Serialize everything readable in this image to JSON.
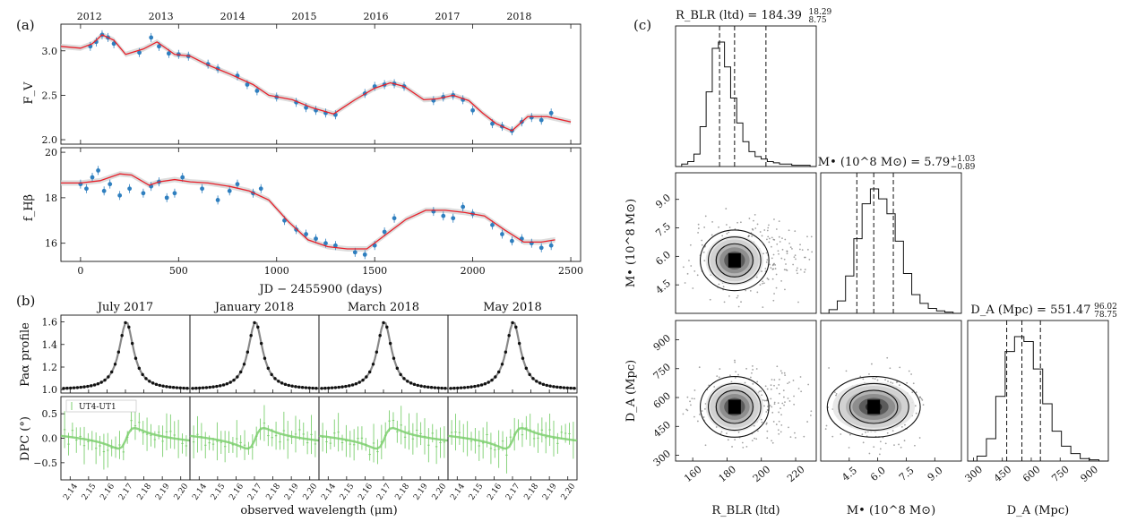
{
  "panel_letters": {
    "a": "(a)",
    "b": "(b)",
    "c": "(c)"
  },
  "chart_data": [
    {
      "type": "scatter",
      "id": "a-top",
      "ylabel": "F_V",
      "xlim": [
        -100,
        2550
      ],
      "ylim": [
        1.95,
        3.3
      ],
      "xticks": [
        "0",
        "500",
        "1000",
        "1500",
        "2000",
        "2500"
      ],
      "yticks": [
        "2.0",
        "2.5",
        "3.0"
      ],
      "top_axis_years": [
        "2012",
        "2013",
        "2014",
        "2015",
        "2016",
        "2017",
        "2018"
      ],
      "series": [
        {
          "kind": "points",
          "color": "#2f7fbf",
          "x": [
            50,
            80,
            110,
            140,
            170,
            300,
            360,
            400,
            450,
            500,
            550,
            650,
            700,
            800,
            850,
            900,
            1000,
            1100,
            1150,
            1200,
            1250,
            1300,
            1450,
            1500,
            1550,
            1600,
            1650,
            1800,
            1850,
            1900,
            1950,
            2000,
            2100,
            2150,
            2200,
            2250,
            2300,
            2350,
            2400
          ],
          "y": [
            3.05,
            3.1,
            3.18,
            3.15,
            3.08,
            2.98,
            3.15,
            3.05,
            2.97,
            2.96,
            2.94,
            2.85,
            2.8,
            2.72,
            2.62,
            2.55,
            2.48,
            2.42,
            2.36,
            2.33,
            2.3,
            2.28,
            2.52,
            2.6,
            2.62,
            2.63,
            2.6,
            2.44,
            2.48,
            2.5,
            2.45,
            2.33,
            2.18,
            2.15,
            2.1,
            2.2,
            2.25,
            2.22,
            2.3
          ]
        },
        {
          "kind": "line",
          "color": "#e8202a",
          "x": [
            -100,
            0,
            60,
            110,
            170,
            230,
            320,
            390,
            480,
            560,
            650,
            760,
            880,
            960,
            1080,
            1180,
            1290,
            1400,
            1500,
            1580,
            1650,
            1750,
            1820,
            1900,
            1980,
            2050,
            2120,
            2200,
            2280,
            2380,
            2500
          ],
          "y": [
            3.05,
            3.03,
            3.08,
            3.18,
            3.12,
            2.96,
            3.02,
            3.1,
            2.96,
            2.94,
            2.84,
            2.74,
            2.62,
            2.5,
            2.45,
            2.36,
            2.29,
            2.45,
            2.58,
            2.64,
            2.6,
            2.45,
            2.46,
            2.5,
            2.44,
            2.3,
            2.18,
            2.1,
            2.26,
            2.26,
            2.2
          ]
        }
      ]
    },
    {
      "type": "scatter",
      "id": "a-bottom",
      "xlabel": "JD − 2455900 (days)",
      "ylabel": "f_Hβ",
      "xlim": [
        -100,
        2550
      ],
      "ylim": [
        15.2,
        20.2
      ],
      "xticks": [
        "0",
        "500",
        "1000",
        "1500",
        "2000",
        "2500"
      ],
      "yticks": [
        "16",
        "18",
        "20"
      ],
      "series": [
        {
          "kind": "points",
          "color": "#2f7fbf",
          "x": [
            0,
            30,
            60,
            90,
            120,
            150,
            200,
            250,
            320,
            360,
            400,
            440,
            480,
            520,
            620,
            700,
            760,
            800,
            880,
            920,
            1040,
            1100,
            1150,
            1200,
            1250,
            1300,
            1400,
            1450,
            1500,
            1550,
            1600,
            1800,
            1850,
            1900,
            1950,
            2000,
            2100,
            2150,
            2200,
            2250,
            2300,
            2350,
            2400
          ],
          "y": [
            18.6,
            18.4,
            18.9,
            19.2,
            18.3,
            18.6,
            18.1,
            18.4,
            18.2,
            18.5,
            18.7,
            18.0,
            18.2,
            18.9,
            18.4,
            17.9,
            18.3,
            18.6,
            18.2,
            18.4,
            17.0,
            16.6,
            16.4,
            16.2,
            16.0,
            15.9,
            15.6,
            15.5,
            15.9,
            16.5,
            17.1,
            17.4,
            17.2,
            17.1,
            17.6,
            17.3,
            16.8,
            16.4,
            16.1,
            16.2,
            16.0,
            15.8,
            15.9
          ]
        },
        {
          "kind": "line",
          "color": "#e8202a",
          "x": [
            -100,
            0,
            100,
            200,
            260,
            350,
            400,
            480,
            560,
            650,
            760,
            860,
            960,
            1060,
            1160,
            1260,
            1360,
            1460,
            1560,
            1660,
            1760,
            1860,
            1960,
            2060,
            2160,
            2260,
            2350,
            2420
          ],
          "y": [
            18.65,
            18.65,
            18.75,
            19.05,
            19.0,
            18.55,
            18.7,
            18.8,
            18.7,
            18.65,
            18.5,
            18.3,
            17.9,
            16.95,
            16.15,
            15.85,
            15.75,
            15.75,
            16.4,
            17.05,
            17.45,
            17.45,
            17.35,
            17.2,
            16.6,
            16.05,
            16.05,
            16.15
          ]
        }
      ]
    },
    {
      "type": "line",
      "id": "b-profile",
      "ylabel": "Paα profile",
      "titles": [
        "July 2017",
        "January 2018",
        "March 2018",
        "May 2018"
      ],
      "xlim": [
        2.135,
        2.205
      ],
      "ylim": [
        0.97,
        1.66
      ],
      "xticks": [
        "2.14",
        "2.15",
        "2.16",
        "2.17",
        "2.18",
        "2.19",
        "2.20"
      ],
      "yticks": [
        "1.0",
        "1.2",
        "1.4",
        "1.6"
      ],
      "peak_center": 2.1705,
      "peak_amplitude": 0.6,
      "peak_width": 0.007,
      "continuum": 1.0
    },
    {
      "type": "scatter",
      "id": "b-dpc",
      "xlabel": "observed wavelength (μm)",
      "ylabel": "DPC (°)",
      "legend": "UT4-UT1",
      "xlim": [
        2.135,
        2.205
      ],
      "ylim": [
        -0.85,
        0.85
      ],
      "xticks": [
        "2.14",
        "2.15",
        "2.16",
        "2.17",
        "2.18",
        "2.19",
        "2.20"
      ],
      "yticks": [
        "−0.5",
        "0.0",
        "0.5"
      ],
      "color": "#7ccf6f"
    },
    {
      "type": "heatmap",
      "id": "c-corner",
      "parameters": [
        "R_BLR (ltd)",
        "M• (10^8 M⊙)",
        "D_A (Mpc)"
      ],
      "titles": [
        {
          "main": "R_BLR (ltd) = 184.39",
          "up": "18.29",
          "down": "8.75"
        },
        {
          "main": "M• (10^8 M⊙) = 5.79",
          "up": "+1.03",
          "down": "−0.89"
        },
        {
          "main": "D_A (Mpc) = 551.47",
          "up": "96.02",
          "down": "78.75"
        }
      ],
      "ranges": [
        [
          150,
          232
        ],
        [
          3.0,
          10.4
        ],
        [
          270,
          1000
        ]
      ],
      "ticks": [
        [
          "160",
          "180",
          "200",
          "220"
        ],
        [
          "4.5",
          "6.0",
          "7.5",
          "9.0"
        ],
        [
          "300",
          "450",
          "600",
          "750",
          "900"
        ]
      ],
      "medians": [
        184.39,
        5.79,
        551.47
      ],
      "quantile_lo": [
        175.64,
        4.9,
        472.72
      ],
      "quantile_hi": [
        202.68,
        6.82,
        647.49
      ],
      "hist_R": [
        0,
        2,
        4,
        10,
        32,
        60,
        95,
        100,
        80,
        55,
        35,
        20,
        12,
        8,
        6,
        4,
        3,
        2,
        2,
        1,
        1,
        1,
        0
      ],
      "hist_M": [
        0,
        3,
        10,
        30,
        60,
        88,
        100,
        92,
        80,
        58,
        32,
        15,
        8,
        4,
        2,
        1,
        0
      ],
      "hist_D": [
        0,
        4,
        18,
        52,
        88,
        100,
        96,
        74,
        46,
        24,
        12,
        6,
        2,
        1,
        0
      ]
    }
  ]
}
